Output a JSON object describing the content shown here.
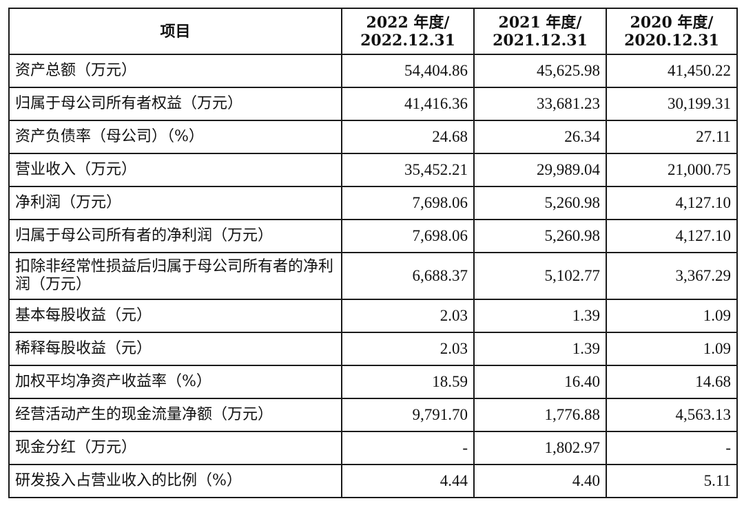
{
  "table": {
    "header": {
      "item": "项目",
      "y2022_line1": "2022 年度/",
      "y2022_line2": "2022.12.31",
      "y2021_line1": "2021 年度/",
      "y2021_line2": "2021.12.31",
      "y2020_line1": "2020 年度/",
      "y2020_line2": "2020.12.31"
    },
    "rows": [
      {
        "label": "资产总额（万元）",
        "v2022": "54,404.86",
        "v2021": "45,625.98",
        "v2020": "41,450.22"
      },
      {
        "label": "归属于母公司所有者权益（万元）",
        "v2022": "41,416.36",
        "v2021": "33,681.23",
        "v2020": "30,199.31"
      },
      {
        "label": "资产负债率（母公司）（%）",
        "v2022": "24.68",
        "v2021": "26.34",
        "v2020": "27.11"
      },
      {
        "label": "营业收入（万元）",
        "v2022": "35,452.21",
        "v2021": "29,989.04",
        "v2020": "21,000.75"
      },
      {
        "label": "净利润（万元）",
        "v2022": "7,698.06",
        "v2021": "5,260.98",
        "v2020": "4,127.10"
      },
      {
        "label": "归属于母公司所有者的净利润（万元）",
        "v2022": "7,698.06",
        "v2021": "5,260.98",
        "v2020": "4,127.10"
      },
      {
        "label": "扣除非经常性损益后归属于母公司所有者的净利润（万元）",
        "v2022": "6,688.37",
        "v2021": "5,102.77",
        "v2020": "3,367.29"
      },
      {
        "label": "基本每股收益（元）",
        "v2022": "2.03",
        "v2021": "1.39",
        "v2020": "1.09"
      },
      {
        "label": "稀释每股收益（元）",
        "v2022": "2.03",
        "v2021": "1.39",
        "v2020": "1.09"
      },
      {
        "label": "加权平均净资产收益率（%）",
        "v2022": "18.59",
        "v2021": "16.40",
        "v2020": "14.68"
      },
      {
        "label": "经营活动产生的现金流量净额（万元）",
        "v2022": "9,791.70",
        "v2021": "1,776.88",
        "v2020": "4,563.13"
      },
      {
        "label": "现金分红（万元）",
        "v2022": "-",
        "v2021": "1,802.97",
        "v2020": "-"
      },
      {
        "label": "研发投入占营业收入的比例（%）",
        "v2022": "4.44",
        "v2021": "4.40",
        "v2020": "5.11"
      }
    ]
  }
}
